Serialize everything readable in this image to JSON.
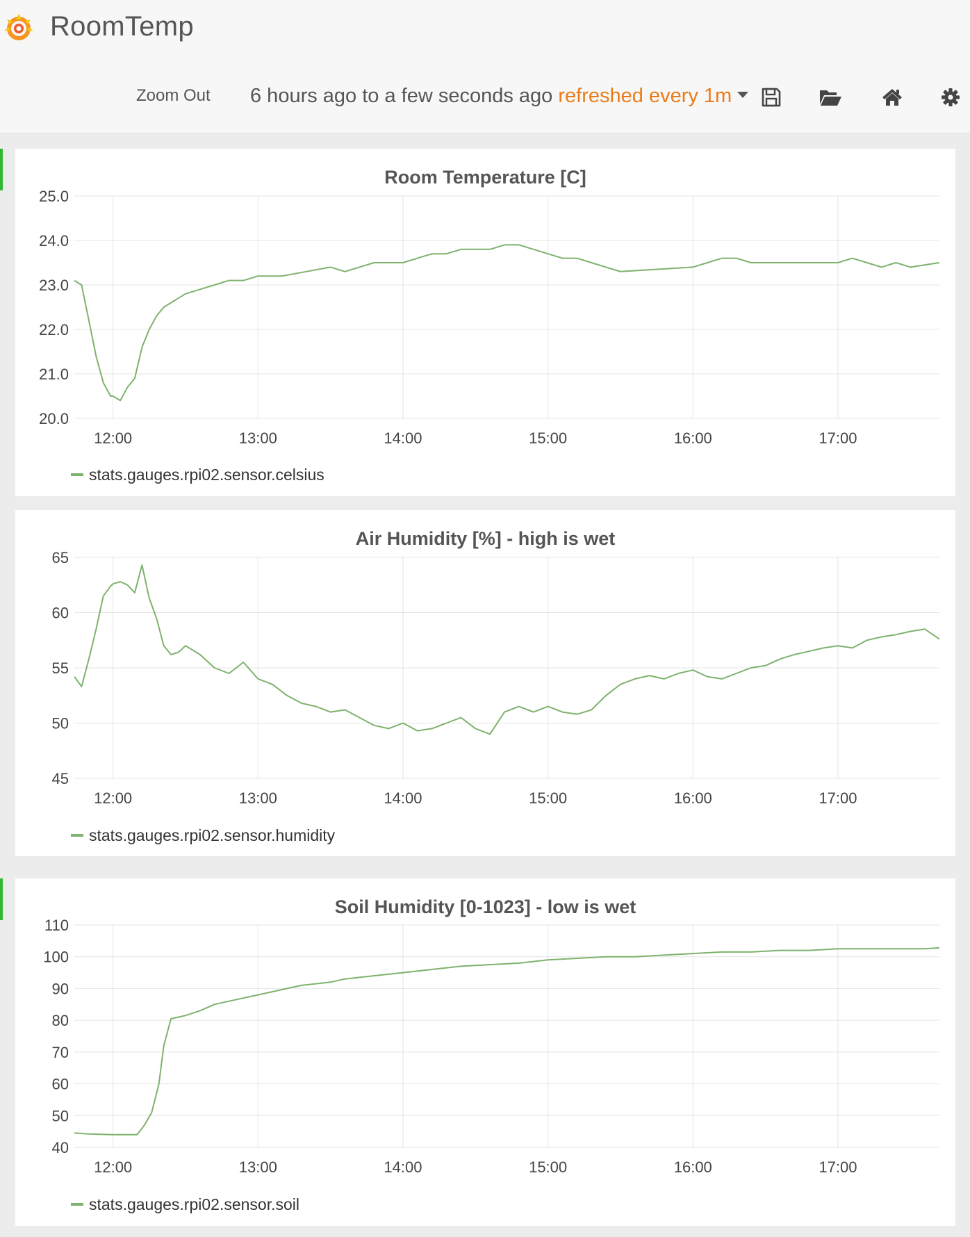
{
  "header": {
    "app_title": "RoomTemp",
    "zoom_out_label": "Zoom Out",
    "time_range": "6 hours ago to a few seconds ago",
    "refresh_label": "refreshed every 1m",
    "icons": [
      "save-icon",
      "folder-open-icon",
      "home-icon",
      "gear-icon"
    ]
  },
  "colors": {
    "series": "#7eb26d",
    "accent": "#eb7b18",
    "row_indicator": "#33b833"
  },
  "chart_data": [
    {
      "type": "line",
      "title": "Room Temperature [C]",
      "x_ticks": [
        "12:00",
        "13:00",
        "14:00",
        "15:00",
        "16:00",
        "17:00"
      ],
      "y_ticks": [
        "25.0",
        "24.0",
        "23.0",
        "22.0",
        "21.0",
        "20.0"
      ],
      "xlim": [
        "11:44",
        "17:42"
      ],
      "ylim": [
        20.0,
        25.0
      ],
      "grid": true,
      "legend_position": "bottom-left",
      "series": [
        {
          "name": "stats.gauges.rpi02.sensor.celsius",
          "x": [
            "11:44",
            "11:47",
            "11:50",
            "11:53",
            "11:56",
            "11:59",
            "12:00",
            "12:03",
            "12:06",
            "12:09",
            "12:12",
            "12:15",
            "12:18",
            "12:21",
            "12:24",
            "12:30",
            "12:36",
            "12:42",
            "12:48",
            "12:54",
            "13:00",
            "13:10",
            "13:20",
            "13:30",
            "13:36",
            "13:42",
            "13:48",
            "14:00",
            "14:06",
            "14:12",
            "14:18",
            "14:24",
            "14:36",
            "14:42",
            "14:48",
            "14:54",
            "15:00",
            "15:06",
            "15:12",
            "15:18",
            "15:24",
            "15:30",
            "16:00",
            "16:06",
            "16:12",
            "16:18",
            "16:24",
            "16:36",
            "16:48",
            "16:54",
            "17:00",
            "17:06",
            "17:12",
            "17:18",
            "17:24",
            "17:30",
            "17:42"
          ],
          "values": [
            23.1,
            23.0,
            22.2,
            21.4,
            20.8,
            20.5,
            20.5,
            20.4,
            20.7,
            20.9,
            21.6,
            22.0,
            22.3,
            22.5,
            22.6,
            22.8,
            22.9,
            23.0,
            23.1,
            23.1,
            23.2,
            23.2,
            23.3,
            23.4,
            23.3,
            23.4,
            23.5,
            23.5,
            23.6,
            23.7,
            23.7,
            23.8,
            23.8,
            23.9,
            23.9,
            23.8,
            23.7,
            23.6,
            23.6,
            23.5,
            23.4,
            23.3,
            23.4,
            23.5,
            23.6,
            23.6,
            23.5,
            23.5,
            23.5,
            23.5,
            23.5,
            23.6,
            23.5,
            23.4,
            23.5,
            23.4,
            23.5
          ]
        }
      ]
    },
    {
      "type": "line",
      "title": "Air Humidity [%] - high is wet",
      "x_ticks": [
        "12:00",
        "13:00",
        "14:00",
        "15:00",
        "16:00",
        "17:00"
      ],
      "y_ticks": [
        "65",
        "60",
        "55",
        "50",
        "45"
      ],
      "xlim": [
        "11:44",
        "17:42"
      ],
      "ylim": [
        45,
        65
      ],
      "grid": true,
      "legend_position": "bottom-left",
      "series": [
        {
          "name": "stats.gauges.rpi02.sensor.humidity",
          "x": [
            "11:44",
            "11:47",
            "11:50",
            "11:53",
            "11:56",
            "11:59",
            "12:00",
            "12:03",
            "12:06",
            "12:09",
            "12:12",
            "12:15",
            "12:18",
            "12:21",
            "12:24",
            "12:27",
            "12:30",
            "12:36",
            "12:42",
            "12:48",
            "12:54",
            "13:00",
            "13:06",
            "13:12",
            "13:18",
            "13:24",
            "13:30",
            "13:36",
            "13:42",
            "13:48",
            "13:54",
            "14:00",
            "14:06",
            "14:12",
            "14:18",
            "14:24",
            "14:30",
            "14:36",
            "14:42",
            "14:48",
            "14:54",
            "15:00",
            "15:06",
            "15:12",
            "15:18",
            "15:24",
            "15:30",
            "15:36",
            "15:42",
            "15:48",
            "15:54",
            "16:00",
            "16:06",
            "16:12",
            "16:18",
            "16:24",
            "16:30",
            "16:36",
            "16:42",
            "16:48",
            "16:54",
            "17:00",
            "17:06",
            "17:12",
            "17:18",
            "17:24",
            "17:30",
            "17:36",
            "17:42"
          ],
          "values": [
            54.2,
            53.3,
            55.8,
            58.5,
            61.5,
            62.4,
            62.6,
            62.8,
            62.5,
            61.8,
            64.3,
            61.3,
            59.5,
            57.0,
            56.2,
            56.4,
            57.0,
            56.2,
            55.0,
            54.5,
            55.5,
            54.0,
            53.5,
            52.5,
            51.8,
            51.5,
            51.0,
            51.2,
            50.5,
            49.8,
            49.5,
            50.0,
            49.3,
            49.5,
            50.0,
            50.5,
            49.5,
            49.0,
            51.0,
            51.5,
            51.0,
            51.5,
            51.0,
            50.8,
            51.2,
            52.5,
            53.5,
            54.0,
            54.3,
            54.0,
            54.5,
            54.8,
            54.2,
            54.0,
            54.5,
            55.0,
            55.2,
            55.8,
            56.2,
            56.5,
            56.8,
            57.0,
            56.8,
            57.5,
            57.8,
            58.0,
            58.3,
            58.5,
            57.6
          ]
        }
      ]
    },
    {
      "type": "line",
      "title": "Soil Humidity [0-1023] - low is wet",
      "x_ticks": [
        "12:00",
        "13:00",
        "14:00",
        "15:00",
        "16:00",
        "17:00"
      ],
      "y_ticks": [
        "110",
        "100",
        "90",
        "80",
        "70",
        "60",
        "50",
        "40"
      ],
      "xlim": [
        "11:44",
        "17:42"
      ],
      "ylim": [
        40,
        110
      ],
      "grid": true,
      "legend_position": "bottom-left",
      "series": [
        {
          "name": "stats.gauges.rpi02.sensor.soil",
          "x": [
            "11:44",
            "11:50",
            "12:00",
            "12:06",
            "12:10",
            "12:13",
            "12:16",
            "12:19",
            "12:21",
            "12:24",
            "12:27",
            "12:30",
            "12:36",
            "12:42",
            "12:48",
            "12:54",
            "13:00",
            "13:06",
            "13:12",
            "13:18",
            "13:24",
            "13:30",
            "13:36",
            "13:42",
            "13:48",
            "13:54",
            "14:00",
            "14:12",
            "14:24",
            "14:36",
            "14:48",
            "15:00",
            "15:12",
            "15:24",
            "15:36",
            "15:48",
            "16:00",
            "16:12",
            "16:24",
            "16:36",
            "16:48",
            "17:00",
            "17:12",
            "17:24",
            "17:36",
            "17:42"
          ],
          "values": [
            44.5,
            44.2,
            44.0,
            44.0,
            44.0,
            47.0,
            51.0,
            60.0,
            72.0,
            80.5,
            81.0,
            81.5,
            83.0,
            85.0,
            86.0,
            87.0,
            88.0,
            89.0,
            90.0,
            91.0,
            91.5,
            92.0,
            93.0,
            93.5,
            94.0,
            94.5,
            95.0,
            96.0,
            97.0,
            97.5,
            98.0,
            99.0,
            99.5,
            100.0,
            100.0,
            100.5,
            101.0,
            101.5,
            101.5,
            102.0,
            102.0,
            102.5,
            102.5,
            102.5,
            102.5,
            102.8
          ]
        }
      ]
    }
  ]
}
